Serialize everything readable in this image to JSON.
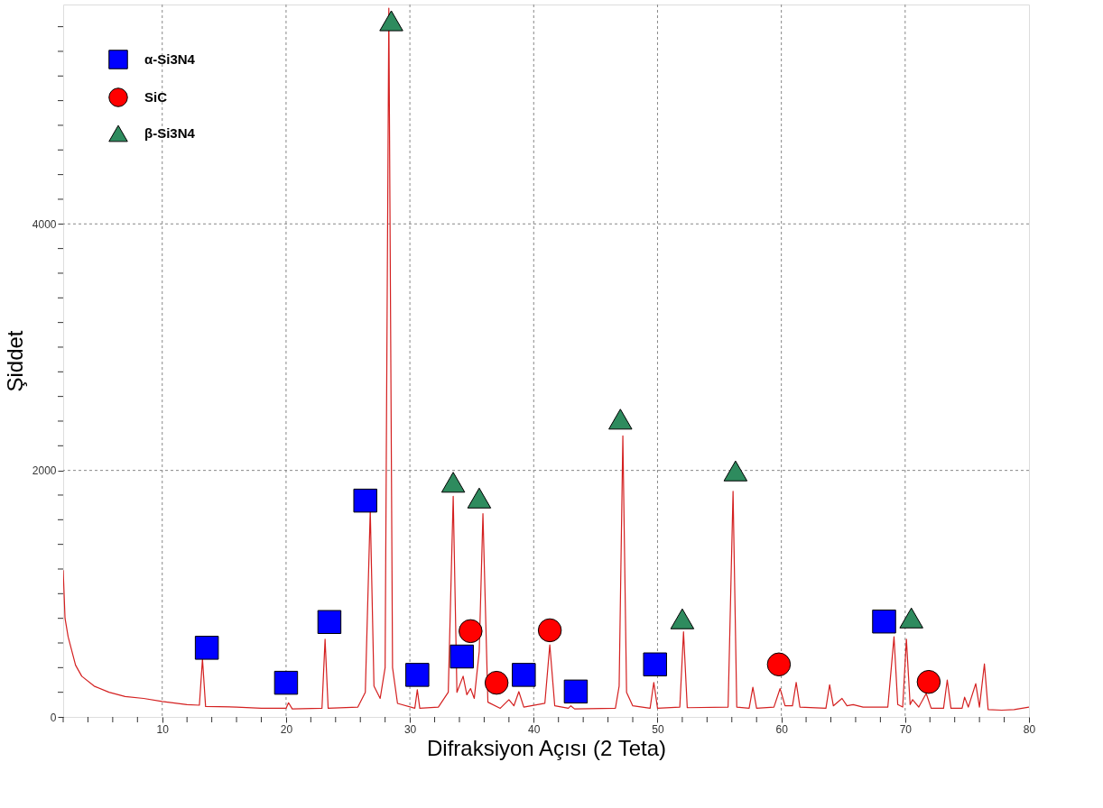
{
  "chart_data": {
    "type": "line",
    "xlabel": "Difraksiyon Açısı (2 Teta)",
    "ylabel": "Şiddet",
    "xlim": [
      2,
      80
    ],
    "ylim": [
      0,
      5780
    ],
    "xticks": [
      {
        "value": 2,
        "label": null
      },
      {
        "value": 4,
        "label": null
      },
      {
        "value": 6,
        "label": null
      },
      {
        "value": 8,
        "label": null
      },
      10,
      {
        "value": 12,
        "label": null
      },
      {
        "value": 14,
        "label": null
      },
      {
        "value": 16,
        "label": null
      },
      {
        "value": 18,
        "label": null
      },
      20,
      {
        "value": 22,
        "label": null
      },
      {
        "value": 24,
        "label": null
      },
      {
        "value": 26,
        "label": null
      },
      {
        "value": 28,
        "label": null
      },
      30,
      {
        "value": 32,
        "label": null
      },
      {
        "value": 34,
        "label": null
      },
      {
        "value": 36,
        "label": null
      },
      {
        "value": 38,
        "label": null
      },
      40,
      {
        "value": 42,
        "label": null
      },
      {
        "value": 44,
        "label": null
      },
      {
        "value": 46,
        "label": null
      },
      {
        "value": 48,
        "label": null
      },
      50,
      {
        "value": 52,
        "label": null
      },
      {
        "value": 54,
        "label": null
      },
      {
        "value": 56,
        "label": null
      },
      {
        "value": 58,
        "label": null
      },
      60,
      {
        "value": 62,
        "label": null
      },
      {
        "value": 64,
        "label": null
      },
      {
        "value": 66,
        "label": null
      },
      {
        "value": 68,
        "label": null
      },
      70,
      {
        "value": 72,
        "label": null
      },
      {
        "value": 74,
        "label": null
      },
      {
        "value": 76,
        "label": null
      },
      {
        "value": 78,
        "label": null
      },
      80
    ],
    "yticks": [
      0,
      {
        "value": 200,
        "label": null
      },
      {
        "value": 400,
        "label": null
      },
      {
        "value": 600,
        "label": null
      },
      {
        "value": 800,
        "label": null
      },
      {
        "value": 1000,
        "label": null
      },
      {
        "value": 1200,
        "label": null
      },
      {
        "value": 1400,
        "label": null
      },
      {
        "value": 1600,
        "label": null
      },
      {
        "value": 1800,
        "label": null
      },
      2000,
      {
        "value": 2200,
        "label": null
      },
      {
        "value": 2400,
        "label": null
      },
      {
        "value": 2600,
        "label": null
      },
      {
        "value": 2800,
        "label": null
      },
      {
        "value": 3000,
        "label": null
      },
      {
        "value": 3200,
        "label": null
      },
      {
        "value": 3400,
        "label": null
      },
      {
        "value": 3600,
        "label": null
      },
      {
        "value": 3800,
        "label": null
      },
      4000,
      {
        "value": 4200,
        "label": null
      },
      {
        "value": 4400,
        "label": null
      },
      {
        "value": 4600,
        "label": null
      },
      {
        "value": 4800,
        "label": null
      },
      {
        "value": 5000,
        "label": null
      },
      {
        "value": 5200,
        "label": null
      },
      {
        "value": 5400,
        "label": null
      },
      {
        "value": 5600,
        "label": null
      }
    ],
    "grid": true,
    "legend": "top left",
    "series": [
      {
        "color": "#d42020",
        "x": [
          2,
          2.15,
          2.4,
          3,
          3.5,
          4.5,
          5.7,
          7,
          8.5,
          10,
          12,
          13.0,
          13.25,
          13.5,
          16,
          18,
          20.0,
          20.2,
          20.5,
          22.9,
          23.15,
          23.4,
          25.8,
          26.4,
          26.8,
          27.1,
          27.6,
          28.0,
          28.3,
          28.6,
          29.0,
          30.4,
          30.6,
          30.8,
          32.3,
          33.1,
          33.5,
          33.8,
          34.3,
          34.6,
          34.9,
          35.2,
          35.6,
          35.9,
          36.3,
          37.3,
          38.0,
          38.4,
          38.8,
          39.2,
          40.9,
          41.3,
          41.7,
          42.8,
          43.0,
          43.3,
          46.6,
          46.9,
          47.2,
          47.5,
          48.0,
          49.4,
          49.7,
          50.0,
          51.8,
          52.1,
          52.4,
          55.7,
          56.1,
          56.4,
          57.4,
          57.7,
          58.0,
          59.4,
          59.9,
          60.3,
          60.9,
          61.2,
          61.5,
          63.6,
          63.9,
          64.2,
          64.9,
          65.3,
          65.8,
          66.6,
          68.6,
          69.1,
          69.4,
          69.8,
          70.1,
          70.4,
          70.6,
          71.1,
          71.7,
          72.1,
          73.1,
          73.4,
          73.7,
          74.6,
          74.8,
          75.1,
          75.7,
          76.0,
          76.4,
          76.7,
          77.8,
          78.8,
          80
        ],
        "values": [
          1190,
          800,
          650,
          420,
          330,
          250,
          200,
          165,
          150,
          125,
          100,
          95,
          470,
          85,
          80,
          70,
          70,
          115,
          65,
          70,
          630,
          70,
          80,
          200,
          1680,
          250,
          150,
          400,
          5750,
          400,
          110,
          70,
          220,
          70,
          80,
          200,
          1790,
          200,
          330,
          180,
          230,
          150,
          530,
          1650,
          120,
          70,
          140,
          90,
          205,
          80,
          110,
          585,
          90,
          70,
          90,
          65,
          70,
          250,
          2280,
          200,
          90,
          70,
          280,
          70,
          80,
          690,
          75,
          80,
          1830,
          80,
          70,
          240,
          70,
          80,
          230,
          90,
          90,
          280,
          80,
          70,
          260,
          90,
          150,
          90,
          100,
          80,
          80,
          650,
          100,
          80,
          630,
          100,
          140,
          80,
          190,
          70,
          70,
          300,
          70,
          70,
          160,
          80,
          270,
          80,
          430,
          60,
          55,
          60,
          80
        ]
      },
      {
        "type": "scatter",
        "name": "α-Si3N4",
        "color": "#0000ff",
        "marker": "square",
        "x": [
          13.6,
          20.0,
          23.5,
          26.4,
          30.6,
          34.2,
          39.2,
          43.4,
          49.8,
          68.3
        ],
        "values": [
          561,
          277,
          770,
          1755,
          341,
          490,
          341,
          206,
          426,
          774
        ]
      },
      {
        "type": "scatter",
        "name": "SiC",
        "color": "#ff0000",
        "marker": "circle",
        "x": [
          34.9,
          37.0,
          41.3,
          59.8,
          71.9
        ],
        "values": [
          696,
          277,
          703,
          426,
          284
        ]
      },
      {
        "type": "scatter",
        "name": "β-Si3N4",
        "color": "#2e8b5e",
        "marker": "triangle",
        "x": [
          28.5,
          33.5,
          35.6,
          47.0,
          52.0,
          56.3,
          70.5
        ],
        "values": [
          5648,
          1904,
          1776,
          2416,
          796,
          1996,
          803
        ]
      }
    ]
  }
}
